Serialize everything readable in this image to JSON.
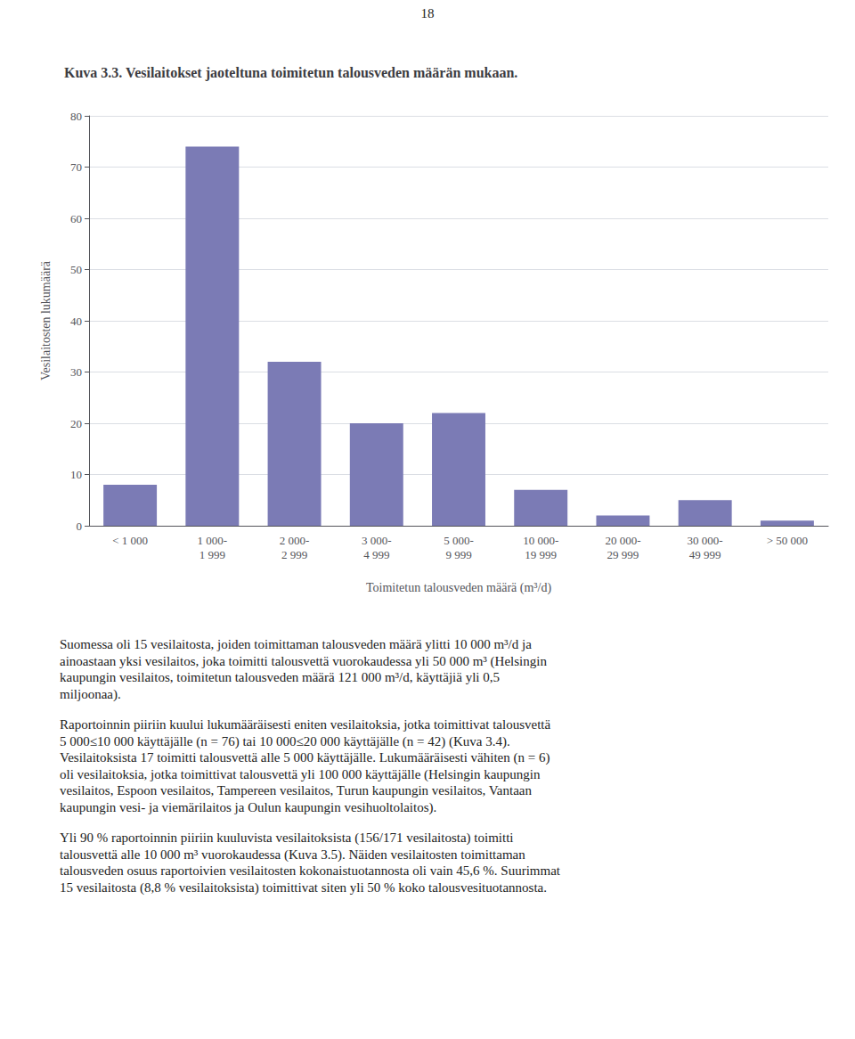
{
  "chart_data": {
    "type": "bar",
    "title": "Kuva 3.3. Vesilaitokset jaoteltuna toimitetun talousveden määrän mukaan.",
    "x_label": "Toimitetun talousveden määrä (m³/d)",
    "y_label": "Vesilaitosten lukumäärä",
    "categories": [
      "< 1 000",
      "1 000-\n1 999",
      "2 000-\n2 999",
      "3 000-\n4 999",
      "5 000-\n9 999",
      "10 000-\n19 999",
      "20 000-\n29 999",
      "30 000-\n49 999",
      "> 50 000"
    ],
    "values": [
      8,
      74,
      32,
      20,
      22,
      7,
      2,
      5,
      1
    ],
    "color": "#7b7bb5",
    "ylim": [
      0,
      80
    ],
    "yticks": [
      0,
      10,
      20,
      30,
      40,
      50,
      60,
      70,
      80
    ],
    "grid": true,
    "annotations": [
      "18",
      "Suomessa oli 15 vesilaitosta, joiden toimittaman talousveden määrä ylitti 10 000 m³/d ja\nainoastaan yksi vesilaitos, joka toimitti talousvettä vuorokaudessa yli 50 000 m³ (Helsingin\nkaupungin vesilaitos, toimitetun talousveden määrä 121 000 m³/d, käyttäjiä yli 0,5\nmiljoonaa).",
      "Raportoinnin piiriin kuului lukumääräisesti eniten vesilaitoksia, jotka toimittivat talousvettä\n5 000≤10 000 käyttäjälle (n = 76) tai 10 000≤20 000 käyttäjälle (n = 42) (Kuva 3.4).\nVesilaitoksista 17 toimitti talousvettä alle 5 000 käyttäjälle. Lukumääräisesti vähiten (n = 6)\noli vesilaitoksia, jotka toimittivat talousvettä yli 100 000 käyttäjälle (Helsingin kaupungin\nvesilaitos, Espoon vesilaitos, Tampereen vesilaitos, Turun kaupungin vesilaitos, Vantaan\nkaupungin vesi- ja viemärilaitos ja Oulun kaupungin vesihuoltolaitos).",
      "Yli 90 % raportoinnin piiriin kuuluvista vesilaitoksista (156/171 vesilaitosta) toimitti\ntalousvettä alle 10 000 m³ vuorokaudessa (Kuva 3.5). Näiden vesilaitosten toimittaman\ntalousveden osuus raportoivien vesilaitosten kokonaistuotannosta oli vain 45,6 %. Suurimmat\n15 vesilaitosta (8,8 % vesilaitoksista) toimittivat siten yli 50 % koko talousvesituotannosta."
    ]
  }
}
